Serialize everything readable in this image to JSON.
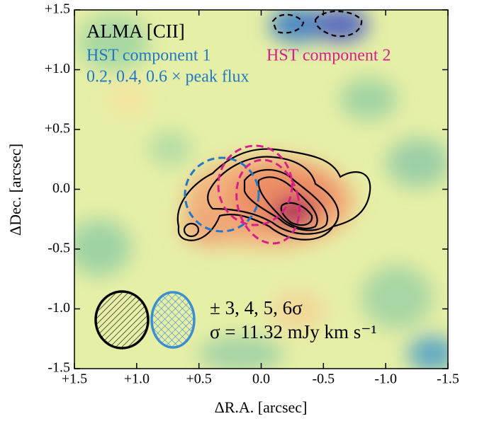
{
  "chart_data": {
    "type": "image",
    "xlabel": "ΔR.A. [arcsec]",
    "ylabel": "ΔDec. [arcsec]",
    "xlim": [
      1.5,
      -1.5
    ],
    "ylim": [
      -1.5,
      1.5
    ],
    "xticks": [
      {
        "value": 1.5,
        "label": "+1.5"
      },
      {
        "value": 1.0,
        "label": "+1.0"
      },
      {
        "value": 0.5,
        "label": "+0.5"
      },
      {
        "value": 0,
        "label": "0.0"
      },
      {
        "value": -0.5,
        "label": "-0.5"
      },
      {
        "value": -1.0,
        "label": "-1.0"
      },
      {
        "value": -1.5,
        "label": "-1.5"
      }
    ],
    "yticks": [
      {
        "value": -1.5,
        "label": "-1.5"
      },
      {
        "value": -1.0,
        "label": "-1.0"
      },
      {
        "value": -0.5,
        "label": "-0.5"
      },
      {
        "value": 0,
        "label": "0.0"
      },
      {
        "value": 0.5,
        "label": "+0.5"
      },
      {
        "value": 1.0,
        "label": "+1.0"
      },
      {
        "value": 1.5,
        "label": "+1.5"
      }
    ],
    "annotations": [
      "ALMA [CII]",
      "HST component 1",
      "HST component 2",
      "0.2, 0.4, 0.6 × peak flux",
      "± 3, 4, 5, 6σ",
      "σ = 11.32 mJy km s⁻¹"
    ]
  }
}
